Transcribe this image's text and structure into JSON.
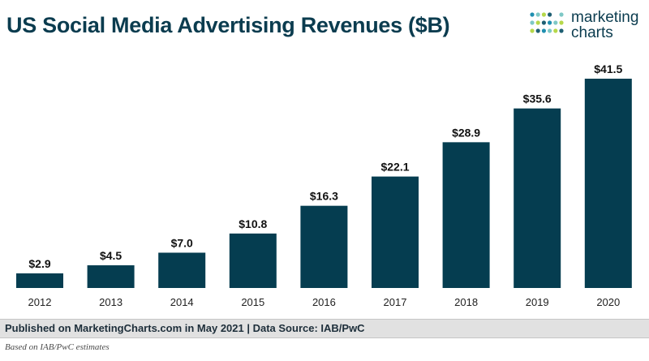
{
  "header": {
    "title": "US Social Media Advertising Revenues ($B)"
  },
  "logo": {
    "line1": "marketing",
    "line2": "charts",
    "dot_colors": [
      "#1f8fb0",
      "#7ec8c6",
      "#b6d84a",
      "#1f5f73"
    ]
  },
  "chart_data": {
    "type": "bar",
    "title": "US Social Media Advertising Revenues ($B)",
    "categories": [
      "2012",
      "2013",
      "2014",
      "2015",
      "2016",
      "2017",
      "2018",
      "2019",
      "2020"
    ],
    "values": [
      2.9,
      4.5,
      7.0,
      10.8,
      16.3,
      22.1,
      28.9,
      35.6,
      41.5
    ],
    "labels": [
      "$2.9",
      "$4.5",
      "$7.0",
      "$10.8",
      "$16.3",
      "$22.1",
      "$28.9",
      "$35.6",
      "$41.5"
    ],
    "xlabel": "",
    "ylabel": "",
    "ylim": [
      0,
      41.5
    ],
    "grid": false,
    "bar_color": "#053d50"
  },
  "footer": {
    "published": "Published on MarketingCharts.com in May 2021 | Data Source: IAB/PwC",
    "note": "Based on IAB/PwC estimates"
  }
}
